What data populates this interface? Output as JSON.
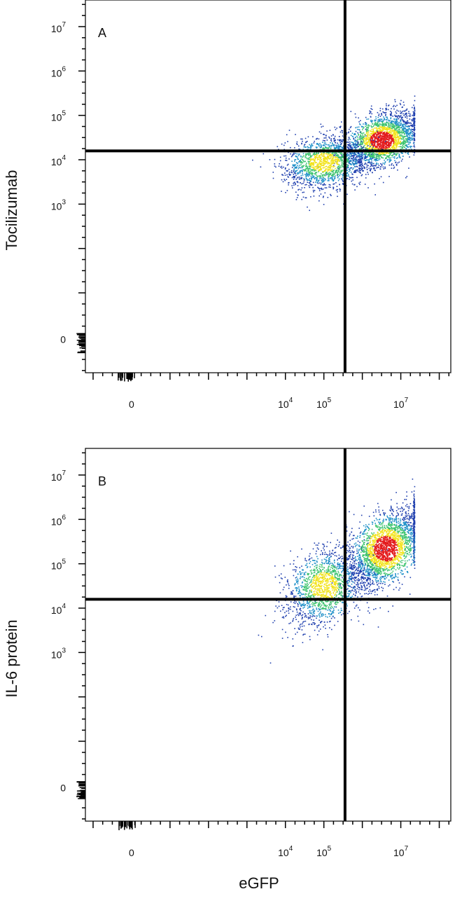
{
  "chart_data": [
    {
      "type": "scatter",
      "panel_label": "A",
      "xlabel": "eGFP",
      "ylabel": "Tocilizumab",
      "x_ticks": [
        {
          "value": 0,
          "base": "0",
          "exp": ""
        },
        {
          "value": 4,
          "base": "10",
          "exp": "4"
        },
        {
          "value": 5,
          "base": "10",
          "exp": "5"
        },
        {
          "value": 7,
          "base": "10",
          "exp": "7"
        }
      ],
      "y_ticks": [
        {
          "value": 0,
          "base": "0",
          "exp": ""
        },
        {
          "value": 3,
          "base": "10",
          "exp": "3"
        },
        {
          "value": 4,
          "base": "10",
          "exp": "4"
        },
        {
          "value": 5,
          "base": "10",
          "exp": "5"
        },
        {
          "value": 6,
          "base": "10",
          "exp": "6"
        },
        {
          "value": 7,
          "base": "10",
          "exp": "7"
        }
      ],
      "xlim": [
        -1.2,
        8.3
      ],
      "ylim": [
        -0.8,
        7.6
      ],
      "quadrant_gate": {
        "x": 5.55,
        "y": 4.2
      },
      "populations": [
        {
          "mx": 6.5,
          "my": 4.45,
          "sx": 0.5,
          "sy": 0.32,
          "rho": 0.45,
          "n": 2400
        },
        {
          "mx": 5.0,
          "my": 3.95,
          "sx": 0.55,
          "sy": 0.3,
          "rho": 0.25,
          "n": 1600
        }
      ],
      "gate_limit_x": 7.35
    },
    {
      "type": "scatter",
      "panel_label": "B",
      "xlabel": "eGFP",
      "ylabel": "IL-6 protein",
      "x_ticks": [
        {
          "value": 0,
          "base": "0",
          "exp": ""
        },
        {
          "value": 4,
          "base": "10",
          "exp": "4"
        },
        {
          "value": 5,
          "base": "10",
          "exp": "5"
        },
        {
          "value": 7,
          "base": "10",
          "exp": "7"
        }
      ],
      "y_ticks": [
        {
          "value": 0,
          "base": "0",
          "exp": ""
        },
        {
          "value": 3,
          "base": "10",
          "exp": "3"
        },
        {
          "value": 4,
          "base": "10",
          "exp": "4"
        },
        {
          "value": 5,
          "base": "10",
          "exp": "5"
        },
        {
          "value": 6,
          "base": "10",
          "exp": "6"
        },
        {
          "value": 7,
          "base": "10",
          "exp": "7"
        }
      ],
      "xlim": [
        -1.2,
        8.3
      ],
      "ylim": [
        -0.8,
        7.6
      ],
      "quadrant_gate": {
        "x": 5.55,
        "y": 4.2
      },
      "populations": [
        {
          "mx": 6.6,
          "my": 5.35,
          "sx": 0.5,
          "sy": 0.45,
          "rho": 0.55,
          "n": 2600
        },
        {
          "mx": 5.0,
          "my": 4.5,
          "sx": 0.5,
          "sy": 0.45,
          "rho": 0.3,
          "n": 1500
        }
      ],
      "gate_limit_x": 7.35
    }
  ],
  "figure": {
    "xlabel": "eGFP"
  },
  "colors": {
    "low": "#1f3fae",
    "mid1": "#1e90c8",
    "mid2": "#3cc36e",
    "mid3": "#f2e31c",
    "high": "#e31a1c",
    "axis": "#000000"
  }
}
